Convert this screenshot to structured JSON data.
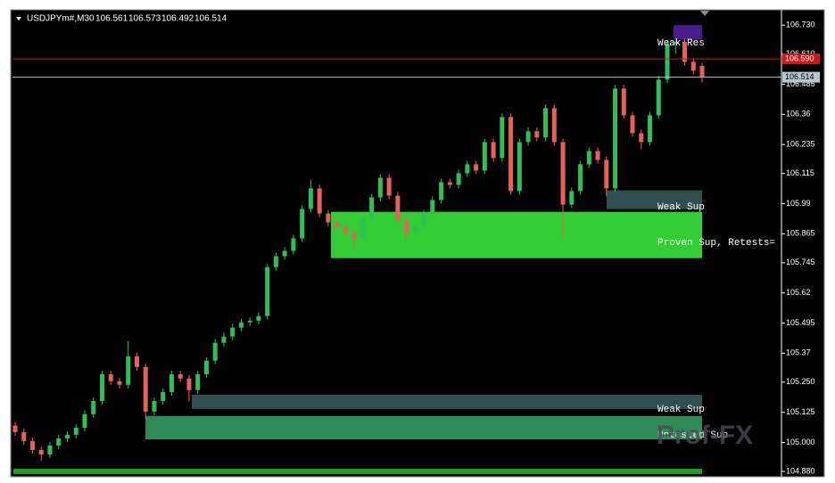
{
  "chart_data": {
    "type": "candlestick",
    "symbol": "USDJPYm#,M30",
    "watermark": "Prof-FX",
    "up_color": "#2fbf5a",
    "down_color": "#e8605a",
    "ylim": [
      104.869,
      106.786
    ],
    "yticks": [
      {
        "value": 106.73,
        "label": "106.730"
      },
      {
        "value": 106.61,
        "label": "106.610"
      },
      106.485,
      106.36,
      106.235,
      106.115,
      105.99,
      105.865,
      105.745,
      105.62,
      105.495,
      105.37,
      {
        "value": 105.25,
        "label": "105.250"
      },
      105.125,
      {
        "value": 105.0,
        "label": "105.000"
      },
      {
        "value": 104.88,
        "label": "104.880"
      }
    ],
    "open": [
      105.07,
      105.043,
      105.006,
      104.969,
      104.95,
      104.987,
      105.017,
      105.032,
      105.061,
      105.117,
      105.172,
      105.283,
      105.254,
      105.239,
      105.357,
      105.313,
      105.128,
      105.172,
      105.209,
      105.283,
      105.265,
      105.217,
      105.283,
      105.339,
      105.413,
      105.439,
      105.476,
      105.498,
      105.505,
      105.524,
      105.727,
      105.772,
      105.794,
      105.846,
      105.968,
      106.053,
      105.949,
      105.912,
      105.894,
      105.868,
      105.846,
      105.931,
      106.016,
      106.097,
      106.023,
      105.92,
      105.868,
      105.894,
      105.949,
      106.005,
      106.079,
      106.068,
      106.116,
      106.153,
      106.127,
      106.245,
      106.179,
      106.349,
      106.042,
      106.245,
      106.29,
      106.264,
      106.386,
      106.245,
      105.986,
      106.042,
      106.153,
      106.208,
      106.171,
      106.053,
      106.467,
      106.356,
      106.282,
      106.245,
      106.356,
      106.504,
      106.652,
      106.66,
      106.578,
      106.561
    ],
    "high": [
      105.085,
      105.058,
      105.021,
      104.984,
      105.002,
      105.032,
      105.047,
      105.076,
      105.132,
      105.187,
      105.298,
      105.298,
      105.269,
      105.42,
      105.372,
      105.328,
      105.187,
      105.224,
      105.298,
      105.298,
      105.28,
      105.298,
      105.354,
      105.428,
      105.454,
      105.491,
      105.513,
      105.52,
      105.539,
      105.742,
      105.787,
      105.809,
      105.861,
      105.983,
      106.09,
      106.068,
      105.964,
      105.927,
      105.909,
      105.883,
      105.946,
      106.031,
      106.112,
      106.112,
      106.038,
      105.935,
      105.909,
      105.964,
      106.02,
      106.094,
      106.094,
      106.131,
      106.168,
      106.168,
      106.26,
      106.26,
      106.364,
      106.364,
      106.26,
      106.305,
      106.305,
      106.401,
      106.401,
      106.26,
      106.057,
      106.168,
      106.223,
      106.223,
      106.186,
      106.482,
      106.482,
      106.371,
      106.297,
      106.371,
      106.519,
      106.667,
      106.675,
      106.675,
      106.593,
      106.573
    ],
    "low": [
      105.028,
      104.991,
      104.954,
      104.925,
      104.935,
      104.972,
      105.002,
      105.017,
      105.046,
      105.102,
      105.157,
      105.239,
      105.224,
      105.224,
      105.298,
      105.1,
      105.113,
      105.157,
      105.194,
      105.25,
      105.17,
      105.202,
      105.268,
      105.324,
      105.398,
      105.424,
      105.461,
      105.483,
      105.49,
      105.509,
      105.712,
      105.757,
      105.779,
      105.831,
      105.953,
      105.934,
      105.897,
      105.879,
      105.853,
      105.8,
      105.831,
      105.916,
      106.001,
      106.008,
      105.905,
      105.84,
      105.853,
      105.879,
      105.934,
      105.99,
      106.053,
      106.053,
      106.101,
      106.112,
      106.112,
      106.164,
      106.164,
      106.027,
      106.027,
      106.23,
      106.249,
      106.249,
      106.23,
      105.846,
      105.971,
      106.027,
      106.138,
      106.156,
      106.02,
      106.038,
      106.341,
      106.267,
      106.215,
      106.23,
      106.341,
      106.489,
      106.61,
      106.563,
      106.526,
      106.492
    ],
    "close": [
      105.043,
      105.006,
      104.969,
      104.95,
      104.987,
      105.017,
      105.032,
      105.061,
      105.117,
      105.172,
      105.283,
      105.254,
      105.239,
      105.357,
      105.313,
      105.128,
      105.172,
      105.209,
      105.283,
      105.265,
      105.217,
      105.283,
      105.339,
      105.413,
      105.439,
      105.476,
      105.498,
      105.505,
      105.524,
      105.727,
      105.772,
      105.794,
      105.846,
      105.968,
      106.053,
      105.949,
      105.912,
      105.894,
      105.868,
      105.846,
      105.931,
      106.016,
      106.097,
      106.023,
      105.92,
      105.868,
      105.894,
      105.949,
      106.005,
      106.079,
      106.068,
      106.116,
      106.153,
      106.127,
      106.245,
      106.179,
      106.349,
      106.042,
      106.245,
      106.29,
      106.264,
      106.386,
      106.245,
      105.986,
      106.042,
      106.153,
      106.208,
      106.171,
      106.053,
      106.467,
      106.356,
      106.282,
      106.245,
      106.356,
      106.504,
      106.652,
      106.66,
      106.578,
      106.541,
      106.514
    ],
    "zones": [
      {
        "label": "Weak Res",
        "from": 106.67,
        "to": 106.73,
        "color": "#4b1a8e"
      },
      {
        "label": "Weak Sup",
        "from": 105.967,
        "to": 106.045,
        "color": "#2f4f4f"
      },
      {
        "label": "Proven Sup, Retests=",
        "from": 105.764,
        "to": 105.956,
        "color": "#32cd32"
      },
      {
        "label": "Weak Sup",
        "from": 105.139,
        "to": 105.198,
        "color": "#2f4f4f"
      },
      {
        "label": "Untested Sup",
        "from": 105.013,
        "to": 105.11,
        "color": "#2e8b57"
      },
      {
        "from": 104.869,
        "to": 104.891,
        "color": "#1f9e1f"
      }
    ],
    "price_lines": [
      {
        "value": 106.59,
        "label": "106.590",
        "color": "#d01818"
      },
      {
        "value": 106.514,
        "label": "106.514",
        "color": "#b8c4d0"
      }
    ]
  }
}
